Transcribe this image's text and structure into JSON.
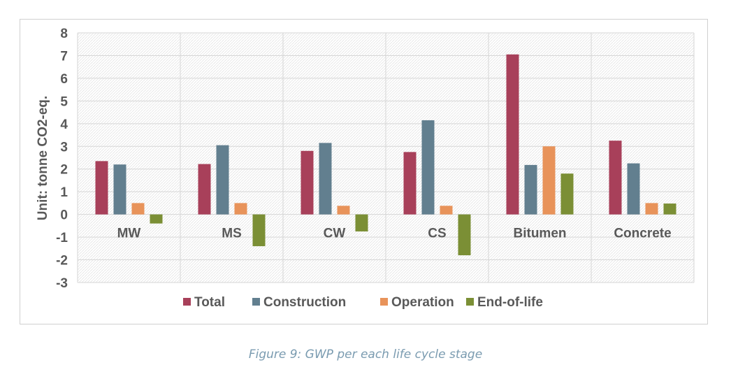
{
  "caption": "Figure 9: GWP per each life cycle stage",
  "chart_data": {
    "type": "bar",
    "title": "",
    "xlabel": "",
    "ylabel": "Unit: tonne CO2-eq.",
    "ylim": [
      -3,
      8
    ],
    "yticks": [
      8,
      7,
      6,
      5,
      4,
      3,
      2,
      1,
      0,
      -1,
      -2,
      -3
    ],
    "categories": [
      "MW",
      "MS",
      "CW",
      "CS",
      "Bitumen",
      "Concrete"
    ],
    "series": [
      {
        "name": "Total",
        "color": "#a8405a",
        "values": [
          2.35,
          2.22,
          2.8,
          2.75,
          7.05,
          3.25
        ]
      },
      {
        "name": "Construction",
        "color": "#627f8f",
        "values": [
          2.2,
          3.05,
          3.15,
          4.15,
          2.18,
          2.25
        ]
      },
      {
        "name": "Operation",
        "color": "#e8935a",
        "values": [
          0.5,
          0.5,
          0.38,
          0.38,
          3.0,
          0.5
        ]
      },
      {
        "name": "End-of-life",
        "color": "#7b8f35",
        "values": [
          -0.4,
          -1.4,
          -0.75,
          -1.8,
          1.8,
          0.48
        ]
      }
    ],
    "grid": true,
    "legend_position": "bottom"
  }
}
